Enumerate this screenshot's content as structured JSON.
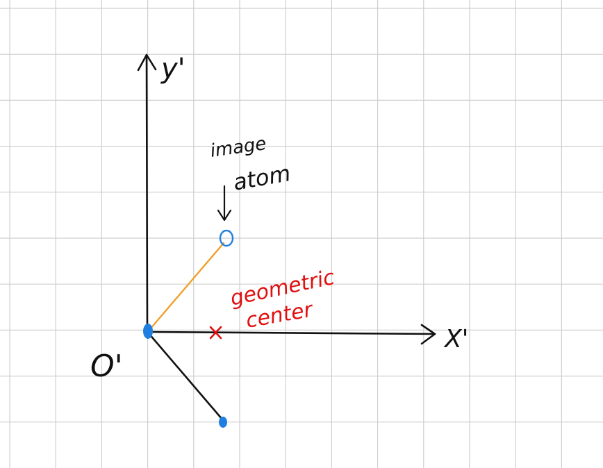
{
  "axes": {
    "x_label": "X'",
    "y_label": "y'",
    "origin_label": "O'"
  },
  "annotations": {
    "image_atom": [
      "image",
      "atom"
    ],
    "geometric_center": [
      "geometric",
      "center"
    ]
  },
  "colors": {
    "background": "#ffffff",
    "grid": "#cfcfcf",
    "axis": "#111111",
    "atom_fill": "#1f7fe0",
    "image_bond": "#f0a02a",
    "real_bond": "#111111",
    "center_mark": "#e01010"
  },
  "icons": {
    "origin_atom": "filled-circle",
    "second_atom": "filled-circle",
    "image_atom": "open-circle",
    "center_marker": "cross-mark",
    "pointer": "down-arrow"
  }
}
